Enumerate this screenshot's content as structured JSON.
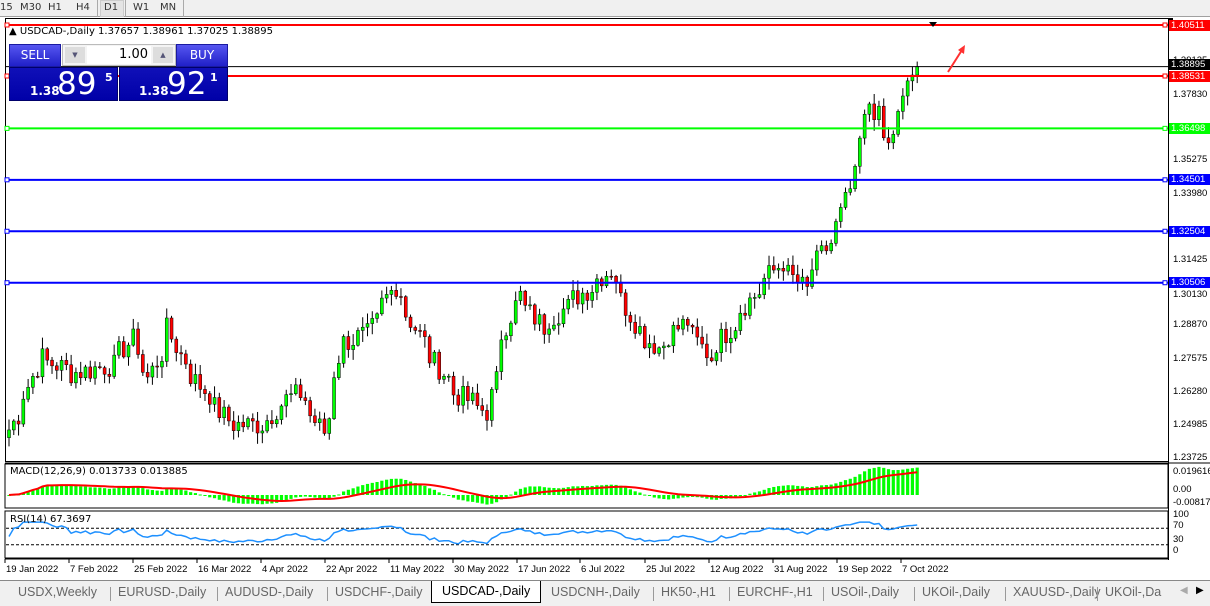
{
  "timeframes": [
    "15",
    "M30",
    "H1",
    "H4",
    "D1",
    "W1",
    "MN"
  ],
  "active_timeframe": "D1",
  "chart": {
    "symbol_title": "USDCAD-,Daily",
    "ohlc": "1.37657 1.38961 1.37025 1.38895",
    "current_price": "1.38895"
  },
  "trade_panel": {
    "sell_label": "SELL",
    "buy_label": "BUY",
    "volume": "1.00",
    "sell_prefix": "1.38",
    "sell_big": "89",
    "sell_sup": "5",
    "buy_prefix": "1.38",
    "buy_big": "92",
    "buy_sup": "1"
  },
  "levels": [
    {
      "price": "1.40511",
      "color": "#ff0000"
    },
    {
      "price": "1.38531",
      "color": "#ff0000"
    },
    {
      "price": "1.36498",
      "color": "#00ff00"
    },
    {
      "price": "1.34501",
      "color": "#0000ff"
    },
    {
      "price": "1.32504",
      "color": "#0000ff"
    },
    {
      "price": "1.30506",
      "color": "#0000ff"
    }
  ],
  "price_ticks": [
    "1.39125",
    "1.37830",
    "1.35275",
    "1.33980",
    "1.31425",
    "1.30130",
    "1.28870",
    "1.27575",
    "1.26280",
    "1.24985",
    "1.23725"
  ],
  "macd": {
    "label": "MACD(12,26,9) 0.013733 0.013885",
    "ticks": [
      "0.019616",
      "0.00",
      "-0.008178"
    ]
  },
  "rsi": {
    "label": "RSI(14) 67.3697",
    "ticks": [
      "100",
      "70",
      "30",
      "0"
    ]
  },
  "dates": [
    "19 Jan 2022",
    "7 Feb 2022",
    "25 Feb 2022",
    "16 Mar 2022",
    "4 Apr 2022",
    "22 Apr 2022",
    "11 May 2022",
    "30 May 2022",
    "17 Jun 2022",
    "6 Jul 2022",
    "25 Jul 2022",
    "12 Aug 2022",
    "31 Aug 2022",
    "19 Sep 2022",
    "7 Oct 2022"
  ],
  "price_path": [
    [
      "2022-01-19",
      1.248
    ],
    [
      "2022-01-25",
      1.265
    ],
    [
      "2022-01-28",
      1.276
    ],
    [
      "2022-02-07",
      1.27
    ],
    [
      "2022-02-18",
      1.273
    ],
    [
      "2022-02-24",
      1.283
    ],
    [
      "2022-03-01",
      1.268
    ],
    [
      "2022-03-07",
      1.287
    ],
    [
      "2022-03-10",
      1.277
    ],
    [
      "2022-03-16",
      1.265
    ],
    [
      "2022-03-25",
      1.25
    ],
    [
      "2022-04-04",
      1.25
    ],
    [
      "2022-04-08",
      1.258
    ],
    [
      "2022-04-14",
      1.262
    ],
    [
      "2022-04-21",
      1.247
    ],
    [
      "2022-04-27",
      1.282
    ],
    [
      "2022-05-04",
      1.285
    ],
    [
      "2022-05-12",
      1.304
    ],
    [
      "2022-05-20",
      1.282
    ],
    [
      "2022-05-30",
      1.262
    ],
    [
      "2022-06-08",
      1.255
    ],
    [
      "2022-06-13",
      1.285
    ],
    [
      "2022-06-17",
      1.3
    ],
    [
      "2022-06-24",
      1.288
    ],
    [
      "2022-07-05",
      1.3
    ],
    [
      "2022-07-14",
      1.31
    ],
    [
      "2022-07-22",
      1.287
    ],
    [
      "2022-07-28",
      1.28
    ],
    [
      "2022-08-05",
      1.29
    ],
    [
      "2022-08-12",
      1.276
    ],
    [
      "2022-08-22",
      1.295
    ],
    [
      "2022-09-02",
      1.313
    ],
    [
      "2022-09-09",
      1.302
    ],
    [
      "2022-09-14",
      1.316
    ],
    [
      "2022-09-19",
      1.327
    ],
    [
      "2022-09-26",
      1.36
    ],
    [
      "2022-09-28",
      1.375
    ],
    [
      "2022-10-04",
      1.358
    ],
    [
      "2022-10-07",
      1.375
    ],
    [
      "2022-10-12",
      1.389
    ]
  ],
  "tabs": [
    "USDX,Weekly",
    "EURUSD-,Daily",
    "AUDUSD-,Daily",
    "USDCHF-,Daily",
    "USDCAD-,Daily",
    "USDCNH-,Daily",
    "HK50-,H1",
    "EURCHF-,H1",
    "USOil-,Daily",
    "UKOil-,Daily",
    "XAUUSD-,Daily",
    "UKOil-,Da"
  ],
  "active_tab": "USDCAD-,Daily",
  "colors": {
    "bull": "#00ff00",
    "bear": "#ff0000",
    "macd_hist": "#00ff00",
    "macd_signal": "#ff0000",
    "rsi": "#1e90ff"
  }
}
